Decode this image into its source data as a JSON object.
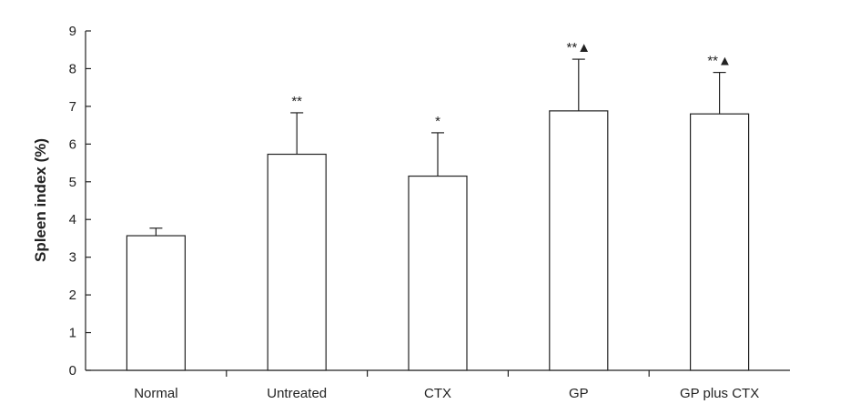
{
  "chart_data": {
    "type": "bar",
    "title": "",
    "xlabel": "",
    "ylabel": "Spleen index (%)",
    "ylim": [
      0,
      9
    ],
    "yticks": [
      "0",
      "1",
      "2",
      "3",
      "4",
      "5",
      "6",
      "7",
      "8",
      "9"
    ],
    "categories": [
      "Normal",
      "Untreated",
      "CTX",
      "GP",
      "GP plus CTX"
    ],
    "values": [
      3.57,
      5.73,
      5.15,
      6.88,
      6.8
    ],
    "error": [
      0.2,
      1.1,
      1.15,
      1.37,
      1.1
    ],
    "significance": [
      "",
      "**",
      "*",
      "**▲",
      "**▲"
    ],
    "grid": false,
    "bar_fill": "#ffffff",
    "bar_stroke": "#222222"
  }
}
